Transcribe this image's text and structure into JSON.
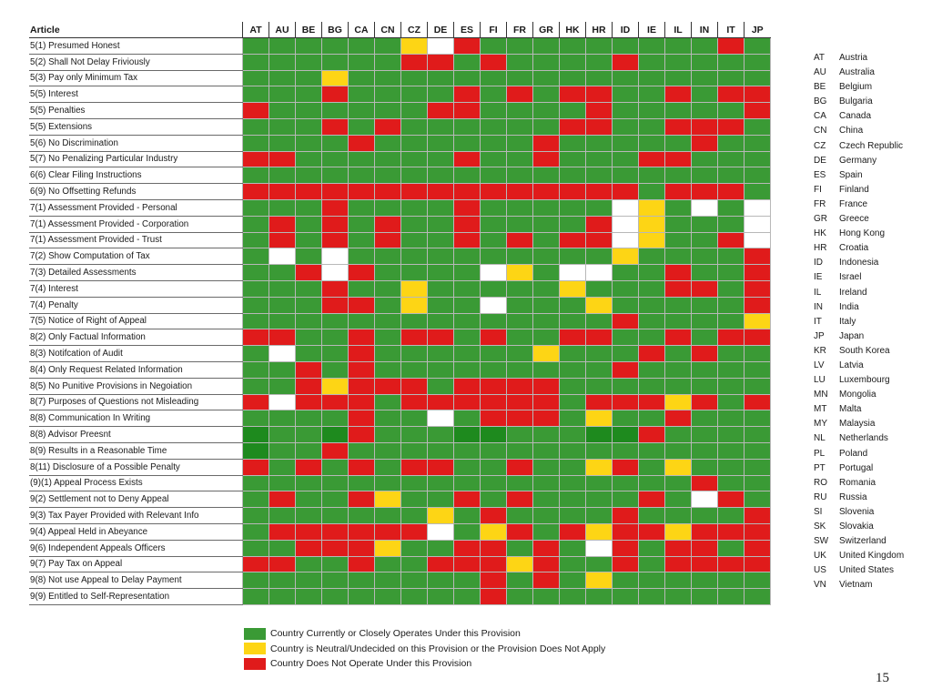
{
  "article_header": "Article",
  "chart_data": {
    "type": "heatmap",
    "columns": [
      "AT",
      "AU",
      "BE",
      "BG",
      "CA",
      "CN",
      "CZ",
      "DE",
      "ES",
      "FI",
      "FR",
      "GR",
      "HK",
      "HR",
      "ID",
      "IE",
      "IL",
      "IN",
      "IT",
      "JP"
    ],
    "rows": [
      {
        "label": "5(1) Presumed Honest",
        "cells": "GGGGGGYWRGGGGGGGGGRG"
      },
      {
        "label": "5(2) Shall Not Delay Friviously",
        "cells": "GGGGGGRRGRGGGGRGGGGG"
      },
      {
        "label": "5(3) Pay only Minimum Tax",
        "cells": "GGGYGGGGGGGGGGGGGGGG"
      },
      {
        "label": "5(5) Interest",
        "cells": "GGGRGGGGRGRGRRGGRGRR"
      },
      {
        "label": "5(5) Penalties",
        "cells": "RGGGGGGRRGGGGRGGGGGR"
      },
      {
        "label": "5(5) Extensions",
        "cells": "GGGRGRGGGGGGRRGGRRRG"
      },
      {
        "label": "5(6) No Discrimination",
        "cells": "GGGGRGGGGGGRGGGGGRGG"
      },
      {
        "label": "5(7) No Penalizing Particular Industry",
        "cells": "RRGGGGGGRGGRGGGRRGGG"
      },
      {
        "label": "6(6) Clear Filing Instructions",
        "cells": "GGGGGGGGGGGGGGGGGGGG"
      },
      {
        "label": "6(9) No Offsetting Refunds",
        "cells": "RRRRRRRRRRRRRRRGRRRG"
      },
      {
        "label": "7(1) Assessment Provided - Personal",
        "cells": "GGGRGGGGRGGGGGWYGWGW"
      },
      {
        "label": "7(1) Assessment Provided - Corporation",
        "cells": "GRGRGRGGRGGGGRWYGGGW"
      },
      {
        "label": "7(1) Assessment Provided - Trust",
        "cells": "GRGRGRGGRGRGRRWYGGRW"
      },
      {
        "label": "7(2) Show Computation of Tax",
        "cells": "GWGWGGGGGGGGGGYGGGGR"
      },
      {
        "label": "7(3) Detailed Assessments",
        "cells": "GGRWRGGGGWYGWWGGRGGR"
      },
      {
        "label": "7(4) Interest",
        "cells": "GGGRGGYGGGGGYGGGRRGR"
      },
      {
        "label": "7(4) Penalty",
        "cells": "GGGRRGYGGWGGGYGGGGGR"
      },
      {
        "label": "7(5) Notice of Right of Appeal",
        "cells": "GGGGGGGGGGGGGGRGGGGY"
      },
      {
        "label": "8(2) Only Factual Information",
        "cells": "RRGGRGRRGRGGRRGGRGRR"
      },
      {
        "label": "8(3) Notifcation of Audit",
        "cells": "GWGGRGGGGGGYGGGRGRGG"
      },
      {
        "label": "8(4) Only Request Related Information",
        "cells": "GGRGRGGGGGGGGGRGGGGG"
      },
      {
        "label": "8(5) No Punitive Provisions in Negoiation",
        "cells": "GGRYRRRGRRRRGGGGGGGG"
      },
      {
        "label": "8(7) Purposes of Questions not Misleading",
        "cells": "RWRRRGRRRRRRGRRRYRGR"
      },
      {
        "label": "8(8) Communication In Writing",
        "cells": "GGGGRGGWGRRRGYGGRGGG"
      },
      {
        "label": "8(8) Advisor Preesnt",
        "cells": "DGGDRGGGDDGGGDDRGGGG"
      },
      {
        "label": "8(9) Results in a Reasonable Time",
        "cells": "DGGRGGGGGGGGGGGGGGGG"
      },
      {
        "label": "8(11) Disclosure of a Possible Penalty",
        "cells": "RGRGRGRRGGRGGYRGYGGG"
      },
      {
        "label": "(9)(1) Appeal Process Exists",
        "cells": "GGGGGGGGGGGGGGGGGRGG"
      },
      {
        "label": "9(2) Settlement not to Deny Appeal",
        "cells": "GRGGRYGGRGRGGGGRGWRG"
      },
      {
        "label": "9(3) Tax Payer Provided with Relevant Info",
        "cells": "GGGGGGGYGRGGGGRGGGGR"
      },
      {
        "label": "9(4) Appeal Held in Abeyance",
        "cells": "GRRRRRRWGYRGRYRRYRRR"
      },
      {
        "label": "9(6) Independent Appeals Officers",
        "cells": "GGRRRYGGRRGRGWRGRRGR"
      },
      {
        "label": "9(7) Pay Tax on Appeal",
        "cells": "RRGGRGGRRRYRGGRGRRRR"
      },
      {
        "label": "9(8) Not use Appeal to Delay Payment",
        "cells": "GGGGGGGGGRGRGYGGGGGG"
      },
      {
        "label": "9(9) Entitled to Self-Representation",
        "cells": "GGGGGGGGGRGGGGGGGGGG"
      }
    ],
    "cell_colors": {
      "G": "#3a9a35",
      "D": "#1e8a1e",
      "R": "#e01b1b",
      "Y": "#fdd515",
      "W": "#ffffff"
    }
  },
  "abbreviations": [
    {
      "code": "AT",
      "name": "Austria"
    },
    {
      "code": "AU",
      "name": "Australia"
    },
    {
      "code": "BE",
      "name": "Belgium"
    },
    {
      "code": "BG",
      "name": "Bulgaria"
    },
    {
      "code": "CA",
      "name": "Canada"
    },
    {
      "code": "CN",
      "name": "China"
    },
    {
      "code": "CZ",
      "name": "Czech Republic"
    },
    {
      "code": "DE",
      "name": "Germany"
    },
    {
      "code": "ES",
      "name": "Spain"
    },
    {
      "code": "FI",
      "name": "Finland"
    },
    {
      "code": "FR",
      "name": "France"
    },
    {
      "code": "GR",
      "name": "Greece"
    },
    {
      "code": "HK",
      "name": "Hong Kong"
    },
    {
      "code": "HR",
      "name": "Croatia"
    },
    {
      "code": "ID",
      "name": "Indonesia"
    },
    {
      "code": "IE",
      "name": "Israel"
    },
    {
      "code": "IL",
      "name": "Ireland"
    },
    {
      "code": "IN",
      "name": "India"
    },
    {
      "code": "IT",
      "name": "Italy"
    },
    {
      "code": "JP",
      "name": "Japan"
    },
    {
      "code": "KR",
      "name": "South Korea"
    },
    {
      "code": "LV",
      "name": "Latvia"
    },
    {
      "code": "LU",
      "name": "Luxembourg"
    },
    {
      "code": "MN",
      "name": "Mongolia"
    },
    {
      "code": "MT",
      "name": "Malta"
    },
    {
      "code": "MY",
      "name": "Malaysia"
    },
    {
      "code": "NL",
      "name": "Netherlands"
    },
    {
      "code": "PL",
      "name": "Poland"
    },
    {
      "code": "PT",
      "name": "Portugal"
    },
    {
      "code": "RO",
      "name": "Romania"
    },
    {
      "code": "RU",
      "name": "Russia"
    },
    {
      "code": "SI",
      "name": "Slovenia"
    },
    {
      "code": "SK",
      "name": "Slovakia"
    },
    {
      "code": "SW",
      "name": "Switzerland"
    },
    {
      "code": "UK",
      "name": "United Kingdom"
    },
    {
      "code": "US",
      "name": "United States"
    },
    {
      "code": "VN",
      "name": "Vietnam"
    }
  ],
  "legend": [
    {
      "color": "#3a9a35",
      "label": "Country Currently or Closely Operates Under this Provision"
    },
    {
      "color": "#fdd515",
      "label": "Country is Neutral/Undecided on this Provision or the Provision Does Not Apply"
    },
    {
      "color": "#e01b1b",
      "label": "Country Does Not Operate Under this Provision"
    }
  ],
  "page_number": "15"
}
